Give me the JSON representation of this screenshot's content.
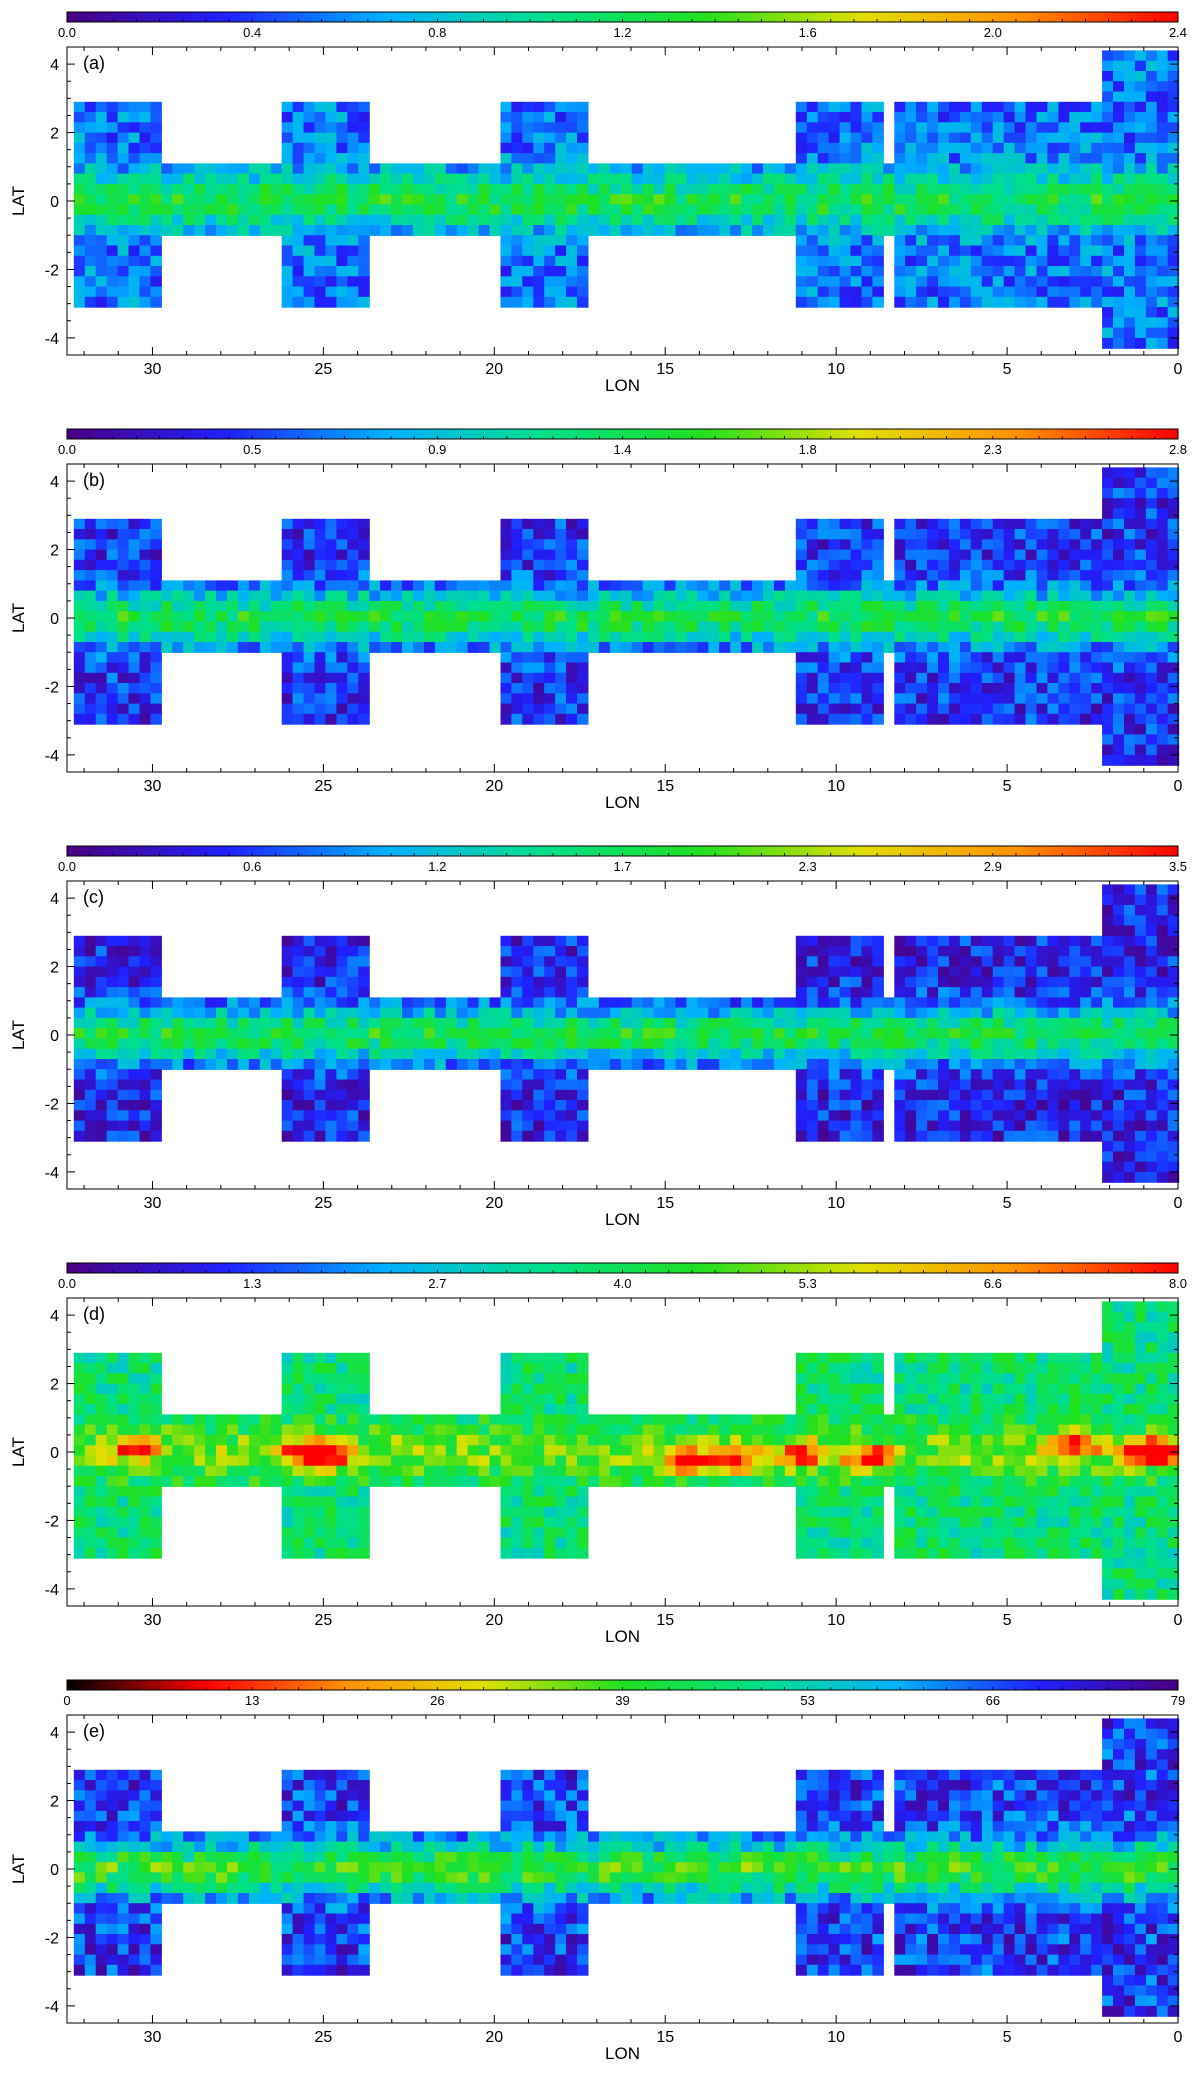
{
  "figure": {
    "x_ticks": [
      30,
      25,
      20,
      15,
      10,
      5,
      0
    ],
    "y_ticks": [
      4,
      2,
      0,
      -2,
      -4
    ],
    "xlim": [
      32.5,
      0
    ],
    "ylim": [
      -4.5,
      4.5
    ]
  },
  "chart_data": [
    {
      "type": "heatmap",
      "panel_label": "(a)",
      "xlabel": "LON",
      "ylabel": "LAT",
      "colorbar": {
        "min": 0.0,
        "max": 2.4,
        "ticks": [
          "0.0",
          "0.4",
          "0.8",
          "1.2",
          "1.6",
          "2.0",
          "2.4"
        ],
        "palette": "rainbow"
      },
      "plane_level": 1.25,
      "high_lat_level": 0.55,
      "hotspots": []
    },
    {
      "type": "heatmap",
      "panel_label": "(b)",
      "xlabel": "LON",
      "ylabel": "LAT",
      "colorbar": {
        "min": 0.0,
        "max": 2.8,
        "ticks": [
          "0.0",
          "0.5",
          "0.9",
          "1.4",
          "1.8",
          "2.3",
          "2.8"
        ],
        "palette": "rainbow"
      },
      "plane_level": 1.45,
      "high_lat_level": 0.42,
      "hotspots": []
    },
    {
      "type": "heatmap",
      "panel_label": "(c)",
      "xlabel": "LON",
      "ylabel": "LAT",
      "colorbar": {
        "min": 0.0,
        "max": 3.5,
        "ticks": [
          "0.0",
          "0.6",
          "1.2",
          "1.7",
          "2.3",
          "2.9",
          "3.5"
        ],
        "palette": "rainbow"
      },
      "plane_level": 1.8,
      "high_lat_level": 0.45,
      "hotspots": []
    },
    {
      "type": "heatmap",
      "panel_label": "(d)",
      "xlabel": "LON",
      "ylabel": "LAT",
      "colorbar": {
        "min": 0.0,
        "max": 8.0,
        "ticks": [
          "0.0",
          "1.3",
          "2.7",
          "4.0",
          "5.3",
          "6.6",
          "8.0"
        ],
        "palette": "rainbow"
      },
      "plane_level": 5.0,
      "high_lat_level": 3.7,
      "hotspots": [
        [
          30.5,
          0.1
        ],
        [
          25.6,
          0
        ],
        [
          24.8,
          -0.1
        ],
        [
          14.2,
          -0.3
        ],
        [
          13.0,
          -0.2
        ],
        [
          11.0,
          -0.1
        ],
        [
          9.0,
          -0.2
        ],
        [
          3.0,
          0.2
        ],
        [
          1.0,
          0
        ],
        [
          0.3,
          0
        ]
      ]
    },
    {
      "type": "heatmap",
      "panel_label": "(e)",
      "xlabel": "LON",
      "ylabel": "LAT",
      "colorbar": {
        "min": 0,
        "max": 79,
        "ticks": [
          "0",
          "13",
          "26",
          "39",
          "53",
          "66",
          "79"
        ],
        "palette": "reversed-rainbow"
      },
      "plane_level": 40,
      "high_lat_level": 68,
      "hotspots": []
    }
  ],
  "colors": {
    "rainbow": [
      "#4b0082",
      "#2020ff",
      "#00b0ff",
      "#00e08a",
      "#20e020",
      "#e0e000",
      "#ff9000",
      "#ff0000"
    ],
    "reversed_rainbow": [
      "#000000",
      "#ff0000",
      "#ff9000",
      "#e0e000",
      "#20e020",
      "#00e08a",
      "#00b0ff",
      "#2020ff",
      "#4b0082"
    ]
  }
}
